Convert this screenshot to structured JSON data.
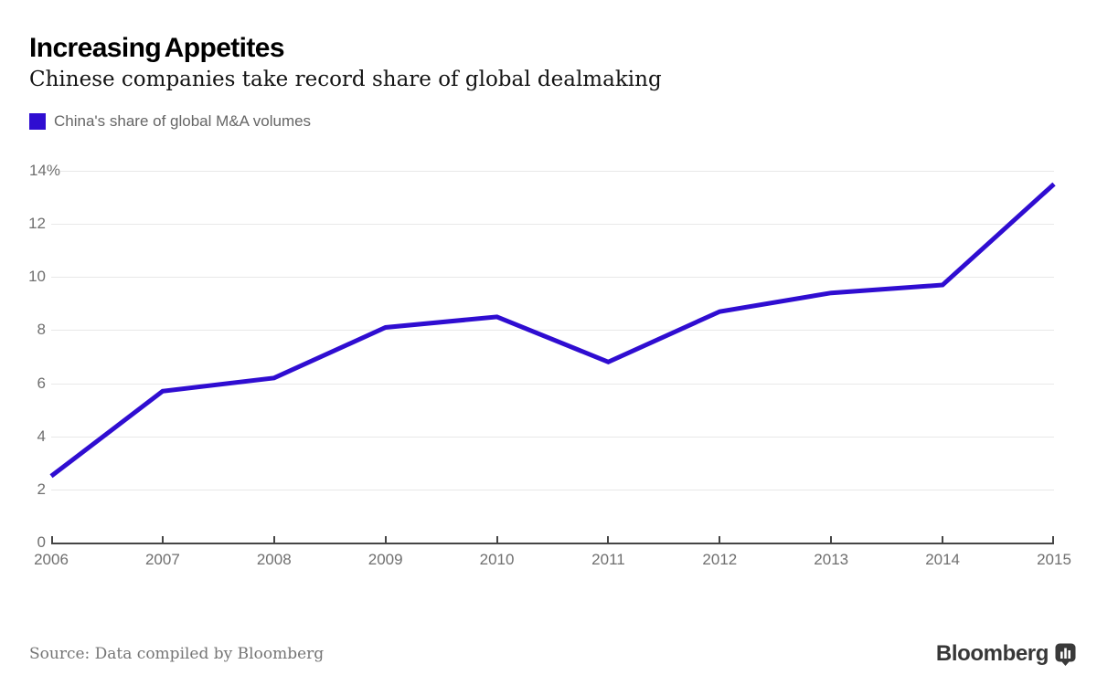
{
  "header": {
    "title": "Increasing Appetites",
    "subtitle": "Chinese companies take record share of global dealmaking",
    "legend": {
      "label": "China's share of global M&A volumes",
      "color": "#2F0DD1"
    }
  },
  "chart_data": {
    "type": "line",
    "title": "Increasing Appetites",
    "subtitle": "Chinese companies take record share of global dealmaking",
    "categories": [
      2006,
      2007,
      2008,
      2009,
      2010,
      2011,
      2012,
      2013,
      2014,
      2015
    ],
    "series": [
      {
        "name": "China's share of global M&A volumes",
        "values": [
          2.5,
          5.7,
          6.2,
          8.1,
          8.5,
          6.8,
          8.7,
          9.4,
          9.7,
          13.5
        ]
      }
    ],
    "xlabel": "",
    "ylabel": "",
    "ylim": [
      0,
      14
    ],
    "yticks": [
      0,
      2,
      4,
      6,
      8,
      10,
      12,
      14
    ],
    "ytick_labels": [
      "0",
      "2",
      "4",
      "6",
      "8",
      "10",
      "12",
      "14%"
    ],
    "grid": "horizontal",
    "legend_position": "top-left",
    "line_color": "#2F0DD1",
    "unit": "percent"
  },
  "footer": {
    "source": "Source: Data compiled by Bloomberg",
    "logo_text": "Bloomberg",
    "logo_icon": "bar-chart-bubble-icon"
  },
  "colors": {
    "line": "#2F0DD1",
    "gridline": "#e8e8e8",
    "axis": "#454545",
    "tick_label": "#6f6f6f",
    "background": "#ffffff"
  }
}
